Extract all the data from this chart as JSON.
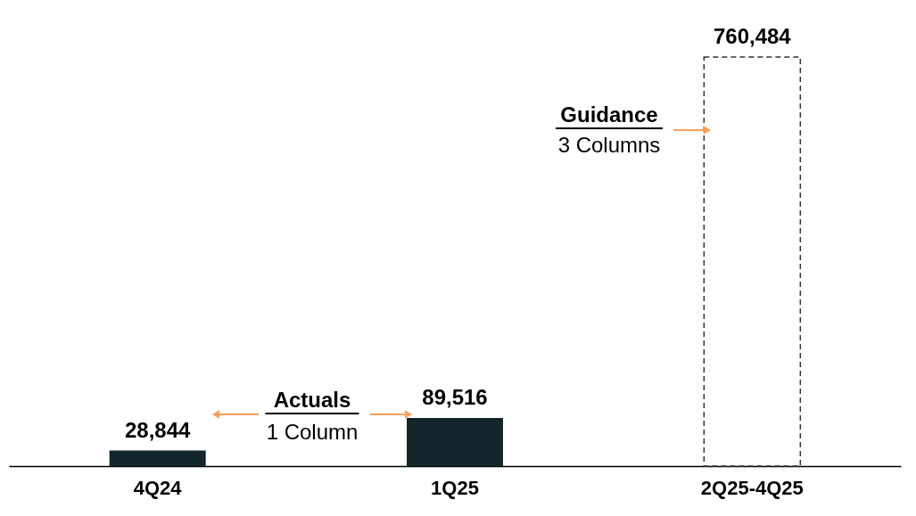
{
  "chart_data": {
    "type": "bar",
    "categories": [
      "4Q24",
      "1Q25",
      "2Q25-4Q25"
    ],
    "series": [
      {
        "color": "#13262b",
        "values": [
          28844,
          89516,
          null
        ],
        "value_labels": [
          "28,844",
          "89,516",
          null
        ]
      },
      {
        "color": "#333333",
        "line_style": "dashed",
        "values": [
          null,
          null,
          760484
        ],
        "value_labels": [
          null,
          null,
          "760,484"
        ]
      }
    ],
    "annotations": [
      "Actuals",
      "1 Column",
      "Guidance",
      "3 Columns"
    ]
  }
}
